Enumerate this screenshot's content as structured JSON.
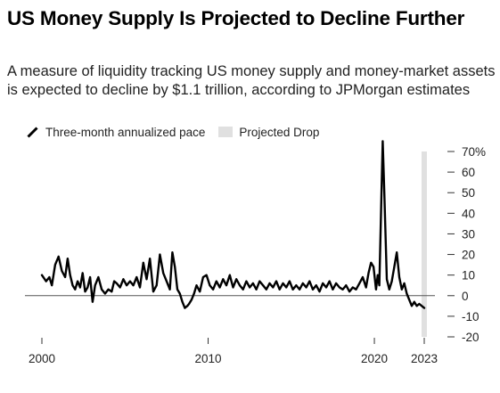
{
  "title": "US Money Supply Is Projected to Decline Further",
  "subtitle": "A measure of liquidity tracking US money supply and money-market assets is expected to decline by $1.1 trillion, according to JPMorgan estimates",
  "legend": {
    "series_label": "Three-month annualized pace",
    "projection_label": "Projected Drop"
  },
  "colors": {
    "line": "#000000",
    "projection": "#e0e0e0",
    "zero_line": "#555555",
    "grid_tick": "#333333"
  },
  "chart_data": {
    "type": "line",
    "title": "US Money Supply Is Projected to Decline Further",
    "xlabel": "",
    "ylabel": "",
    "x_ticks": [
      "2000",
      "2010",
      "2020",
      "2023"
    ],
    "y_ticks": [
      "70%",
      "60",
      "50",
      "40",
      "30",
      "20",
      "10",
      "0",
      "-10",
      "-20"
    ],
    "y_tick_values": [
      70,
      60,
      50,
      40,
      30,
      20,
      10,
      0,
      -10,
      -20
    ],
    "ylim": [
      -20,
      70
    ],
    "xlim": [
      2000,
      2023
    ],
    "y_axis_position": "right",
    "grid": false,
    "legend_position": "top-left",
    "series": [
      {
        "name": "Three-month annualized pace",
        "x": [
          2000.0,
          2000.25,
          2000.45,
          2000.6,
          2000.8,
          2001.0,
          2001.2,
          2001.4,
          2001.55,
          2001.7,
          2001.85,
          2002.0,
          2002.15,
          2002.3,
          2002.45,
          2002.6,
          2002.75,
          2002.9,
          2003.05,
          2003.2,
          2003.4,
          2003.6,
          2003.8,
          2004.0,
          2004.2,
          2004.35,
          2004.5,
          2004.7,
          2004.9,
          2005.1,
          2005.3,
          2005.5,
          2005.7,
          2005.9,
          2006.1,
          2006.3,
          2006.5,
          2006.7,
          2006.9,
          2007.1,
          2007.3,
          2007.5,
          2007.7,
          2007.85,
          2008.0,
          2008.15,
          2008.3,
          2008.45,
          2008.6,
          2008.75,
          2008.85,
          2009.0,
          2009.15,
          2009.3,
          2009.5,
          2009.7,
          2009.9,
          2010.1,
          2010.3,
          2010.5,
          2010.7,
          2010.9,
          2011.1,
          2011.3,
          2011.5,
          2011.7,
          2011.9,
          2012.1,
          2012.3,
          2012.5,
          2012.7,
          2012.9,
          2013.1,
          2013.3,
          2013.5,
          2013.7,
          2013.9,
          2014.1,
          2014.3,
          2014.5,
          2014.7,
          2014.9,
          2015.1,
          2015.3,
          2015.5,
          2015.7,
          2015.9,
          2016.1,
          2016.3,
          2016.5,
          2016.7,
          2016.9,
          2017.1,
          2017.3,
          2017.5,
          2017.7,
          2017.9,
          2018.1,
          2018.3,
          2018.5,
          2018.7,
          2018.9,
          2019.1,
          2019.3,
          2019.5,
          2019.65,
          2019.8,
          2019.95,
          2020.1,
          2020.2,
          2020.3,
          2020.4,
          2020.5,
          2020.6,
          2020.75,
          2020.9,
          2021.05,
          2021.2,
          2021.35,
          2021.5,
          2021.65,
          2021.8,
          2021.95,
          2022.1,
          2022.25,
          2022.4,
          2022.55,
          2022.7,
          2022.85,
          2023.0
        ],
        "values": [
          10,
          7,
          9,
          5,
          15,
          19,
          12,
          9,
          18,
          10,
          5,
          3,
          7,
          4,
          11,
          2,
          4,
          9,
          -3,
          5,
          9,
          3,
          1,
          3,
          2,
          7,
          6,
          4,
          8,
          5,
          7,
          5,
          9,
          4,
          16,
          8,
          18,
          2,
          5,
          20,
          11,
          7,
          3,
          21,
          14,
          3,
          1,
          -3,
          -6,
          -5,
          -4,
          -2,
          1,
          5,
          2,
          9,
          10,
          5,
          3,
          7,
          4,
          8,
          5,
          10,
          4,
          8,
          5,
          3,
          7,
          4,
          6,
          3,
          7,
          5,
          3,
          6,
          4,
          7,
          3,
          6,
          4,
          7,
          3,
          5,
          3,
          6,
          4,
          7,
          3,
          5,
          2,
          6,
          4,
          7,
          3,
          6,
          4,
          3,
          5,
          2,
          4,
          3,
          6,
          9,
          4,
          11,
          16,
          14,
          3,
          10,
          5,
          40,
          75,
          50,
          8,
          3,
          7,
          14,
          21,
          9,
          3,
          6,
          1,
          -2,
          -5,
          -3,
          -5,
          -4,
          -5,
          -6
        ]
      }
    ],
    "projection": {
      "label": "Projected Drop",
      "x": 2023.0
    }
  }
}
